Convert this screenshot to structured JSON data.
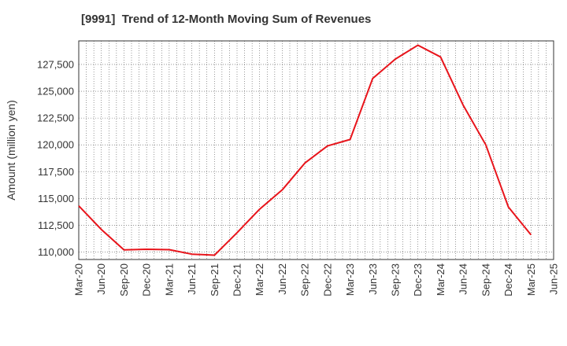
{
  "chart_data": {
    "type": "line",
    "title": "[9991]  Trend of 12-Month Moving Sum of Revenues",
    "xlabel": "",
    "ylabel": "Amount (million yen)",
    "x_ticks": [
      "Mar-20",
      "Jun-20",
      "Sep-20",
      "Dec-20",
      "Mar-21",
      "Jun-21",
      "Sep-21",
      "Dec-21",
      "Mar-22",
      "Jun-22",
      "Sep-22",
      "Dec-22",
      "Mar-23",
      "Jun-23",
      "Sep-23",
      "Dec-23",
      "Mar-24",
      "Jun-24",
      "Sep-24",
      "Dec-24",
      "Mar-25",
      "Jun-25"
    ],
    "y_ticks": [
      110000,
      112500,
      115000,
      117500,
      120000,
      122500,
      125000,
      127500
    ],
    "y_tick_labels": [
      "110,000",
      "112,500",
      "115,000",
      "117,500",
      "120,000",
      "122,500",
      "125,000",
      "127,500"
    ],
    "ylim": [
      109300,
      129700
    ],
    "grid": true,
    "series": [
      {
        "color": "#e8141b",
        "x": [
          "Mar-20",
          "Jun-20",
          "Sep-20",
          "Dec-20",
          "Mar-21",
          "Jun-21",
          "Sep-21",
          "Dec-21",
          "Mar-22",
          "Jun-22",
          "Sep-22",
          "Dec-22",
          "Mar-23",
          "Jun-23",
          "Sep-23",
          "Dec-23",
          "Mar-24",
          "Jun-24",
          "Sep-24",
          "Dec-24",
          "Mar-25"
        ],
        "values": [
          114300,
          112100,
          110200,
          110250,
          110220,
          109800,
          109700,
          111800,
          114000,
          115800,
          118300,
          119900,
          120500,
          126200,
          128000,
          129300,
          128200,
          123700,
          120000,
          114200,
          111600
        ]
      }
    ]
  }
}
